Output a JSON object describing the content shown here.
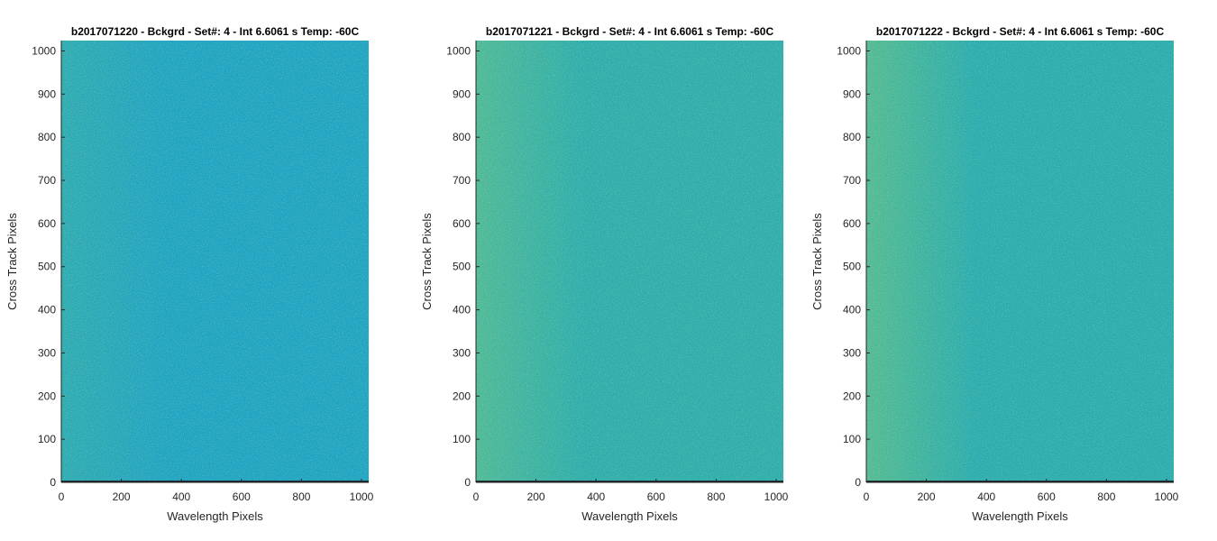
{
  "chart_data": [
    {
      "type": "heatmap",
      "title": "b2017071220 - Bckgrd - Set#: 4 - Int 6.6061 s Temp: -60C",
      "xlabel": "Wavelength Pixels",
      "ylabel": "Cross Track Pixels",
      "xlim": [
        0,
        1024
      ],
      "ylim": [
        0,
        1024
      ],
      "xticks": [
        0,
        200,
        400,
        600,
        800,
        1000
      ],
      "yticks": [
        0,
        100,
        200,
        300,
        400,
        500,
        600,
        700,
        800,
        900,
        1000
      ],
      "colormap": "parula",
      "noise": "random per-pixel background noise",
      "color_field": {
        "base_color": "#1ba2c5",
        "left_edge_color": "#29aab4",
        "bottom_row_color": "#1c2a2e"
      }
    },
    {
      "type": "heatmap",
      "title": "b2017071221 - Bckgrd - Set#: 4 - Int 6.6061 s Temp: -60C",
      "xlabel": "Wavelength Pixels",
      "ylabel": "Cross Track Pixels",
      "xlim": [
        0,
        1024
      ],
      "ylim": [
        0,
        1024
      ],
      "xticks": [
        0,
        200,
        400,
        600,
        800,
        1000
      ],
      "yticks": [
        0,
        100,
        200,
        300,
        400,
        500,
        600,
        700,
        800,
        900,
        1000
      ],
      "colormap": "parula",
      "noise": "random per-pixel background noise",
      "color_field": {
        "base_color": "#2aacae",
        "left_edge_color": "#4ab89a",
        "bottom_row_color": "#1c2a2e"
      }
    },
    {
      "type": "heatmap",
      "title": "b2017071222 - Bckgrd - Set#: 4 - Int 6.6061 s Temp: -60C",
      "xlabel": "Wavelength Pixels",
      "ylabel": "Cross Track Pixels",
      "xlim": [
        0,
        1024
      ],
      "ylim": [
        0,
        1024
      ],
      "xticks": [
        0,
        200,
        400,
        600,
        800,
        1000
      ],
      "yticks": [
        0,
        100,
        200,
        300,
        400,
        500,
        600,
        700,
        800,
        900,
        1000
      ],
      "colormap": "parula",
      "noise": "random per-pixel background noise",
      "color_field": {
        "base_color": "#27abb0",
        "left_edge_color": "#4fba94",
        "bottom_row_color": "#1c2a2e"
      }
    }
  ]
}
